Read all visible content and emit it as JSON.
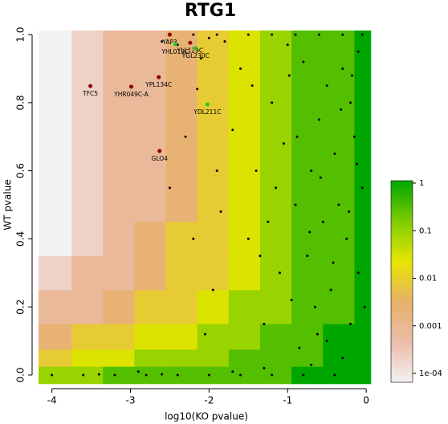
{
  "chart_data": {
    "type": "heatmap-scatter",
    "title": "RTG1",
    "x_label": "log10(KO pvalue)",
    "y_label": "WT pvalue",
    "xlim": [
      -4.17,
      0.06
    ],
    "ylim": [
      -0.026,
      1.012
    ],
    "xticks": [
      -4,
      -3,
      -2,
      -1,
      0
    ],
    "yticks": [
      {
        "value": 0,
        "label": "0.0"
      },
      0.2,
      0.4,
      0.6,
      0.8,
      {
        "value": 1,
        "label": "1.0"
      }
    ],
    "heatmap": {
      "xbins": [
        -4.17,
        -3.75,
        -3.35,
        -2.95,
        -2.55,
        -2.15,
        -1.75,
        -1.35,
        -0.95,
        -0.55,
        -0.15,
        0.06
      ],
      "ybins": [
        -0.026,
        0.025,
        0.075,
        0.15,
        0.25,
        0.35,
        0.45,
        0.55,
        0.65,
        0.75,
        0.85,
        0.95,
        1.012
      ],
      "values": [
        [
          0.1,
          0.1,
          0.3,
          0.3,
          0.3,
          0.3,
          0.3,
          0.3,
          1,
          1,
          1
        ],
        [
          0.01,
          0.03,
          0.03,
          0.1,
          0.1,
          0.1,
          0.3,
          0.3,
          0.3,
          1,
          1
        ],
        [
          0.003,
          0.01,
          0.01,
          0.03,
          0.03,
          0.1,
          0.1,
          0.3,
          0.3,
          1,
          1
        ],
        [
          0.001,
          0.001,
          0.003,
          0.01,
          0.01,
          0.03,
          0.1,
          0.1,
          0.3,
          0.3,
          1
        ],
        [
          0.0003,
          0.001,
          0.001,
          0.003,
          0.01,
          0.01,
          0.03,
          0.1,
          0.3,
          0.3,
          1
        ],
        [
          0.0001,
          0.0003,
          0.001,
          0.003,
          0.01,
          0.01,
          0.03,
          0.1,
          0.3,
          0.3,
          1
        ],
        [
          0.0001,
          0.0003,
          0.001,
          0.001,
          0.003,
          0.01,
          0.03,
          0.1,
          0.3,
          0.3,
          1
        ],
        [
          0.0001,
          0.0003,
          0.001,
          0.001,
          0.003,
          0.01,
          0.03,
          0.1,
          0.3,
          0.3,
          1
        ],
        [
          0.0001,
          0.0003,
          0.001,
          0.001,
          0.003,
          0.01,
          0.03,
          0.1,
          0.3,
          0.3,
          1
        ],
        [
          0.0001,
          0.0003,
          0.001,
          0.001,
          0.003,
          0.01,
          0.03,
          0.1,
          0.3,
          0.3,
          1
        ],
        [
          0.0001,
          0.0003,
          0.001,
          0.001,
          0.003,
          0.01,
          0.03,
          0.1,
          0.3,
          0.3,
          1
        ],
        [
          0.0001,
          0.0003,
          0.001,
          0.001,
          0.003,
          0.01,
          0.03,
          0.1,
          0.3,
          0.3,
          1
        ]
      ]
    },
    "colorscale": [
      "#f2f2f2",
      "#ebbcaa",
      "#e8b06a",
      "#e6e600",
      "#7fcc00",
      "#00a600"
    ],
    "clim": [
      0.0001,
      1
    ],
    "colorbar_ticks": [
      1,
      0.1,
      0.01,
      0.001,
      {
        "value": 0.0001,
        "label": "1e-04"
      }
    ],
    "points": {
      "color": "#000000",
      "x": [
        -0.1,
        -0.3,
        -0.5,
        -0.2,
        -0.6,
        -0.15,
        -0.4,
        -0.7,
        -0.05,
        -0.35,
        -0.55,
        -0.25,
        -0.75,
        -0.1,
        -0.45,
        -0.65,
        -0.2,
        -0.5,
        -0.3,
        -0.8,
        -0.12,
        -0.42,
        -0.62,
        -0.22,
        -0.88,
        -0.02,
        -0.58,
        -0.32,
        -0.72,
        -0.18,
        -1.0,
        -1.2,
        -0.9,
        -1.4,
        -1.1,
        -1.6,
        -1.3,
        -0.95,
        -1.5,
        -1.05,
        -1.7,
        -1.25,
        -0.85,
        -1.45,
        -1.15,
        -1.8,
        -1.35,
        -0.98,
        -2.0,
        -2.1,
        -1.9,
        -2.2,
        -1.95,
        -2.3,
        -2.4,
        -2.05,
        -2.6,
        -1.85,
        -2.15,
        -2.5,
        -4.0,
        -3.6,
        -3.2,
        -2.8,
        -2.4,
        -2.0,
        -1.6,
        -1.2,
        -0.8,
        -0.4,
        -3.4,
        -2.6,
        -1.5,
        -1.2,
        -0.9,
        -0.6,
        -0.3,
        -0.05,
        -1.9,
        -2.2,
        -1.3,
        -0.7,
        -1.7,
        -2.9
      ],
      "y": [
        0.95,
        0.9,
        0.85,
        0.8,
        0.75,
        0.7,
        0.65,
        0.6,
        0.55,
        0.5,
        0.45,
        0.4,
        0.35,
        0.3,
        0.25,
        0.2,
        0.15,
        0.1,
        0.05,
        0.92,
        0.62,
        0.33,
        0.12,
        0.48,
        0.7,
        0.2,
        0.58,
        0.78,
        0.42,
        0.88,
        0.97,
        0.8,
        0.5,
        0.6,
        0.3,
        0.9,
        0.15,
        0.22,
        0.4,
        0.68,
        0.72,
        0.45,
        0.08,
        0.85,
        0.55,
        0.98,
        0.35,
        0.88,
        0.99,
        0.93,
        0.6,
        0.4,
        0.25,
        0.7,
        0.97,
        0.12,
        0.98,
        0.48,
        0.84,
        0.55,
        0,
        0,
        0,
        0,
        0,
        0,
        0,
        0,
        0,
        0,
        0.002,
        0.002,
        1.0,
        1.0,
        1.0,
        1.0,
        1.0,
        1.0,
        1.0,
        1.0,
        0.02,
        0.03,
        0.01,
        0.01
      ]
    },
    "highlights": {
      "labels": [
        "YAP3",
        "YHL019C",
        "YLL129C",
        "YGL230C",
        "YPL134C",
        "TFC5",
        "YHR049C-A",
        "YDL211C",
        "GLO4"
      ],
      "x": [
        -2.5,
        -2.43,
        -2.24,
        -2.17,
        -2.64,
        -3.51,
        -2.99,
        -2.02,
        -2.63
      ],
      "y": [
        1.0,
        0.972,
        0.976,
        0.96,
        0.875,
        0.849,
        0.847,
        0.795,
        0.658
      ],
      "colors": [
        "#8b0000",
        "#22cc22",
        "#8b0000",
        "#22cc22",
        "#8b0000",
        "#8b0000",
        "#8b0000",
        "#22cc22",
        "#8b0000"
      ]
    }
  }
}
